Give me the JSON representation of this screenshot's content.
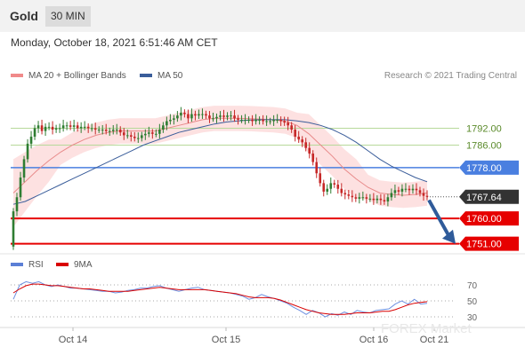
{
  "header": {
    "asset": "Gold",
    "timeframe": "30 MIN"
  },
  "datetime": "Monday, October 18, 2021 6:51:46 AM CET",
  "legend": {
    "items": [
      {
        "label": "MA 20 + Bollinger Bands",
        "color": "#f08a8a"
      },
      {
        "label": "MA 50",
        "color": "#3a5d9a"
      }
    ],
    "copyright": "Research © 2021 Trading Central"
  },
  "rsi_legend": {
    "items": [
      {
        "label": "RSI",
        "color": "#5b7fd6"
      },
      {
        "label": "9MA",
        "color": "#d90000"
      }
    ]
  },
  "watermark": "FOREX Market",
  "colors": {
    "up": "#2e7d32",
    "down": "#c62828",
    "band": "#fcd7d7",
    "resistance": "#b7d99a",
    "pivot": "#4a7fe0",
    "support": "#e60000",
    "arrow": "#2f5b9a"
  },
  "chart_data": [
    {
      "type": "candlestick",
      "title": "",
      "x_ticks": [
        "Oct 14",
        "Oct 15",
        "Oct 16",
        "Oct 21"
      ],
      "ylim": [
        1749,
        1806
      ],
      "levels": [
        {
          "label": "1792.00",
          "value": 1792.0,
          "kind": "resistance"
        },
        {
          "label": "1786.00",
          "value": 1786.0,
          "kind": "resistance"
        },
        {
          "label": "1778.00",
          "value": 1778.0,
          "kind": "pivot"
        },
        {
          "label": "1767.64",
          "value": 1767.64,
          "kind": "last"
        },
        {
          "label": "1760.00",
          "value": 1760.0,
          "kind": "support"
        },
        {
          "label": "1751.00",
          "value": 1751.0,
          "kind": "support"
        }
      ],
      "closes": [
        1762.5,
        1767.5,
        1774.5,
        1781,
        1786.5,
        1789,
        1792,
        1793,
        1791,
        1792.5,
        1792.5,
        1791.5,
        1792,
        1792,
        1793,
        1793,
        1792.5,
        1793,
        1792,
        1792.5,
        1792.5,
        1792,
        1792,
        1791.5,
        1791.5,
        1791.5,
        1791,
        1791,
        1791.5,
        1791.5,
        1790.5,
        1789.5,
        1789.5,
        1789,
        1788.5,
        1788.5,
        1789.5,
        1790,
        1790.5,
        1790,
        1790,
        1791.5,
        1793,
        1794.5,
        1795,
        1795.5,
        1796.5,
        1797.5,
        1797,
        1795.5,
        1797,
        1796.5,
        1797,
        1797,
        1796.5,
        1795.5,
        1795.5,
        1796,
        1796.5,
        1796,
        1796.5,
        1796.5,
        1795.5,
        1795,
        1795,
        1795,
        1795,
        1794.5,
        1795,
        1795,
        1794.5,
        1794.5,
        1794.5,
        1795,
        1795,
        1794.5,
        1794,
        1793,
        1791.5,
        1789,
        1788,
        1787,
        1785,
        1783,
        1780,
        1776,
        1772.5,
        1769.5,
        1770.5,
        1772.5,
        1772,
        1770.5,
        1769,
        1768.5,
        1768,
        1767.5,
        1767,
        1767.5,
        1767.5,
        1767,
        1767,
        1766.5,
        1767,
        1766.5,
        1766,
        1767.5,
        1769,
        1770,
        1769.5,
        1770.5,
        1770.5,
        1770,
        1770.5,
        1770,
        1769,
        1768,
        1767.64
      ],
      "ma50": [
        1765,
        1766,
        1768,
        1770,
        1772,
        1774,
        1776,
        1778,
        1780,
        1782,
        1784,
        1786,
        1787.5,
        1789,
        1790.5,
        1791.5,
        1792.5,
        1793.5,
        1794.2,
        1794.6,
        1794.9,
        1795,
        1795,
        1795,
        1794.6,
        1794,
        1793,
        1791.5,
        1789.5,
        1787,
        1784,
        1781,
        1778.5,
        1776.5,
        1774.5,
        1773
      ],
      "ma20": [
        1769,
        1773,
        1777,
        1780.5,
        1783.5,
        1786,
        1788,
        1789.5,
        1790.5,
        1791,
        1791,
        1791,
        1791,
        1792,
        1793,
        1794,
        1795,
        1795.5,
        1795.5,
        1795.5,
        1795.4,
        1795.2,
        1795,
        1794.5,
        1793,
        1790,
        1786,
        1782,
        1777.5,
        1774,
        1771,
        1769,
        1768.5,
        1768.2,
        1768.5,
        1769
      ]
    },
    {
      "type": "line",
      "title": "",
      "ylim": [
        20,
        80
      ],
      "y_ticks": [
        70,
        50,
        30
      ],
      "series": [
        {
          "name": "RSI",
          "values": [
            52,
            70,
            74,
            72,
            74,
            70,
            68,
            70,
            68,
            66,
            66,
            65,
            64,
            63,
            62,
            62,
            60,
            61,
            63,
            64,
            66,
            66,
            68,
            69,
            66,
            64,
            62,
            64,
            66,
            67,
            64,
            63,
            62,
            61,
            60,
            58,
            56,
            52,
            54,
            58,
            55,
            53,
            50,
            47,
            42,
            38,
            33,
            38,
            35,
            30,
            34,
            32,
            36,
            33,
            38,
            36,
            35,
            38,
            39,
            40,
            46,
            50,
            46,
            52,
            46,
            47
          ]
        },
        {
          "name": "9MA",
          "values": [
            60,
            65,
            69,
            71,
            71,
            70,
            69,
            69,
            68,
            67,
            66,
            65,
            65,
            64,
            63,
            62,
            62,
            62,
            62,
            63,
            64,
            65,
            66,
            67,
            66,
            65,
            64,
            64,
            64,
            64,
            64,
            63,
            62,
            61,
            60,
            59,
            57,
            55,
            54,
            54,
            54,
            53,
            51,
            48,
            45,
            42,
            39,
            37,
            35,
            34,
            33,
            33,
            33,
            34,
            35,
            35,
            35,
            36,
            37,
            37,
            39,
            42,
            45,
            47,
            48,
            49
          ]
        }
      ]
    }
  ]
}
